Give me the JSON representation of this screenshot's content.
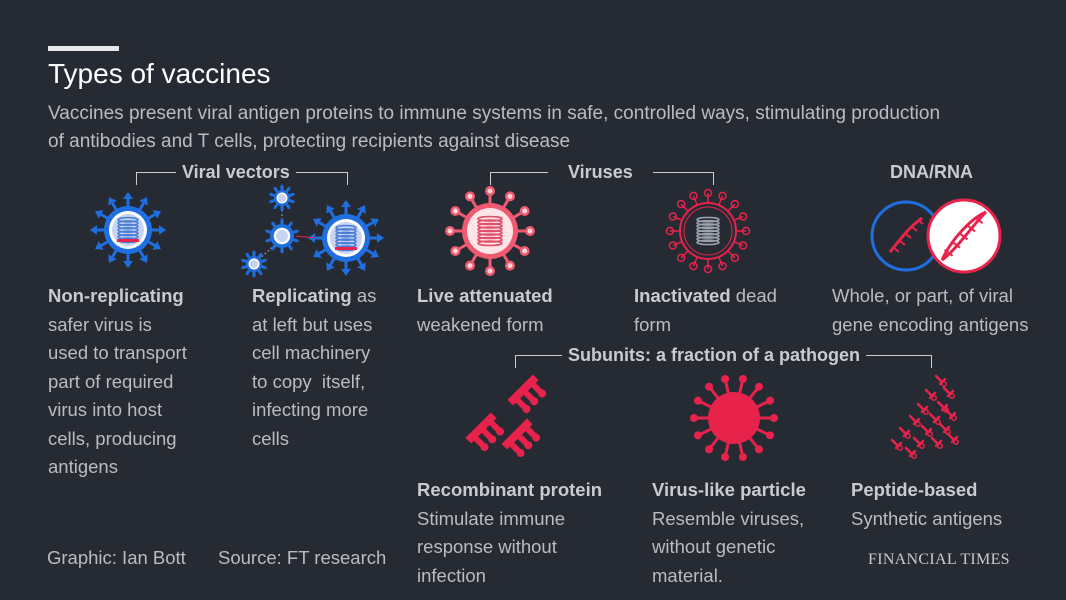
{
  "title": "Types of vaccines",
  "subtitle": "Vaccines present viral antigen proteins to immune systems in safe, controlled ways, stimulating production of antibodies and T cells, protecting recipients against disease",
  "groups": {
    "viral_vectors": "Viral vectors",
    "viruses": "Viruses",
    "dna_rna": "DNA/RNA",
    "subunits": "Subunits: a fraction of a pathogen"
  },
  "items": {
    "non_replicating": {
      "name": "Non-replicating",
      "desc_lines": [
        "safer virus is",
        "used to transport",
        "part of required",
        "virus into host",
        "cells, producing",
        "antigens"
      ]
    },
    "replicating": {
      "name": "Replicating",
      "rest_first": " as",
      "desc_lines": [
        "at left but uses",
        "cell machinery",
        "to copy  itself,",
        "infecting more",
        "cells"
      ]
    },
    "live_attenuated": {
      "name": "Live attenuated",
      "desc_lines": [
        "weakened form"
      ]
    },
    "inactivated": {
      "name": "Inactivated",
      "rest_first": " dead",
      "desc_lines": [
        "form"
      ]
    },
    "dna_rna": {
      "desc_lines": [
        "Whole, or part, of viral",
        "gene encoding antigens"
      ]
    },
    "recombinant": {
      "name": "Recombinant protein",
      "desc_lines": [
        "Stimulate immune",
        "response without",
        "infection"
      ]
    },
    "vlp": {
      "name": "Virus-like particle",
      "desc_lines": [
        "Resemble viruses,",
        "without genetic",
        "material."
      ]
    },
    "peptide": {
      "name": "Peptide-based",
      "desc_lines": [
        "Synthetic antigens"
      ]
    }
  },
  "footer": {
    "graphic": "Graphic: Ian Bott",
    "source": "Source: FT research",
    "brand": "FINANCIAL TIMES"
  },
  "colors": {
    "background": "#262a33",
    "blue": "#1f6fe0",
    "pink": "#f05a70",
    "red": "#e8234b",
    "gray": "#9aa3ad"
  }
}
